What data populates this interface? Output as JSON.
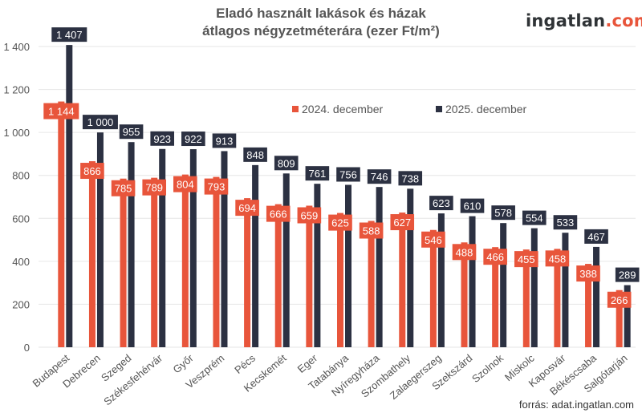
{
  "header": {
    "title_line1": "Eladó használt lakások és házak",
    "title_line2": "átlagos négyzetméterára (ezer Ft/m²)",
    "logo_main": "ingatlan",
    "logo_suffix": ".com"
  },
  "footer": {
    "source": "forrás: adat.ingatlan.com"
  },
  "colors": {
    "series_2024": "#e8553b",
    "series_2025": "#2c3142",
    "grid": "#e6e6e6",
    "axis_text": "#555555"
  },
  "chart_data": {
    "type": "bar",
    "title": "Eladó használt lakások és házak átlagos négyzetméterára (ezer Ft/m²)",
    "xlabel": "",
    "ylabel": "",
    "ylim": [
      0,
      1400
    ],
    "yticks": [
      0,
      200,
      400,
      600,
      800,
      1000,
      1200,
      1400
    ],
    "ytick_labels": [
      "0",
      "200",
      "400",
      "600",
      "800",
      "1 000",
      "1 200",
      "1 400"
    ],
    "grid": true,
    "legend_position": "top-right",
    "categories": [
      "Budapest",
      "Debrecen",
      "Szeged",
      "Székesfehérvár",
      "Győr",
      "Veszprém",
      "Pécs",
      "Kecskemét",
      "Eger",
      "Tatabánya",
      "Nyíregyháza",
      "Szombathely",
      "Zalaegerszeg",
      "Szekszárd",
      "Szolnok",
      "Miskolc",
      "Kaposvár",
      "Békéscsaba",
      "Salgótarján"
    ],
    "series": [
      {
        "name": "2024. december",
        "color": "#e8553b",
        "values": [
          1144,
          866,
          785,
          789,
          804,
          793,
          694,
          666,
          659,
          625,
          588,
          627,
          546,
          488,
          466,
          455,
          458,
          388,
          266
        ],
        "labels": [
          "1 144",
          "866",
          "785",
          "789",
          "804",
          "793",
          "694",
          "666",
          "659",
          "625",
          "588",
          "627",
          "546",
          "488",
          "466",
          "455",
          "458",
          "388",
          "266"
        ]
      },
      {
        "name": "2025. december",
        "color": "#2c3142",
        "values": [
          1407,
          1000,
          955,
          923,
          922,
          913,
          848,
          809,
          761,
          756,
          746,
          738,
          623,
          610,
          578,
          554,
          533,
          467,
          289
        ],
        "labels": [
          "1 407",
          "1 000",
          "955",
          "923",
          "922",
          "913",
          "848",
          "809",
          "761",
          "756",
          "746",
          "738",
          "623",
          "610",
          "578",
          "554",
          "533",
          "467",
          "289"
        ]
      }
    ]
  }
}
